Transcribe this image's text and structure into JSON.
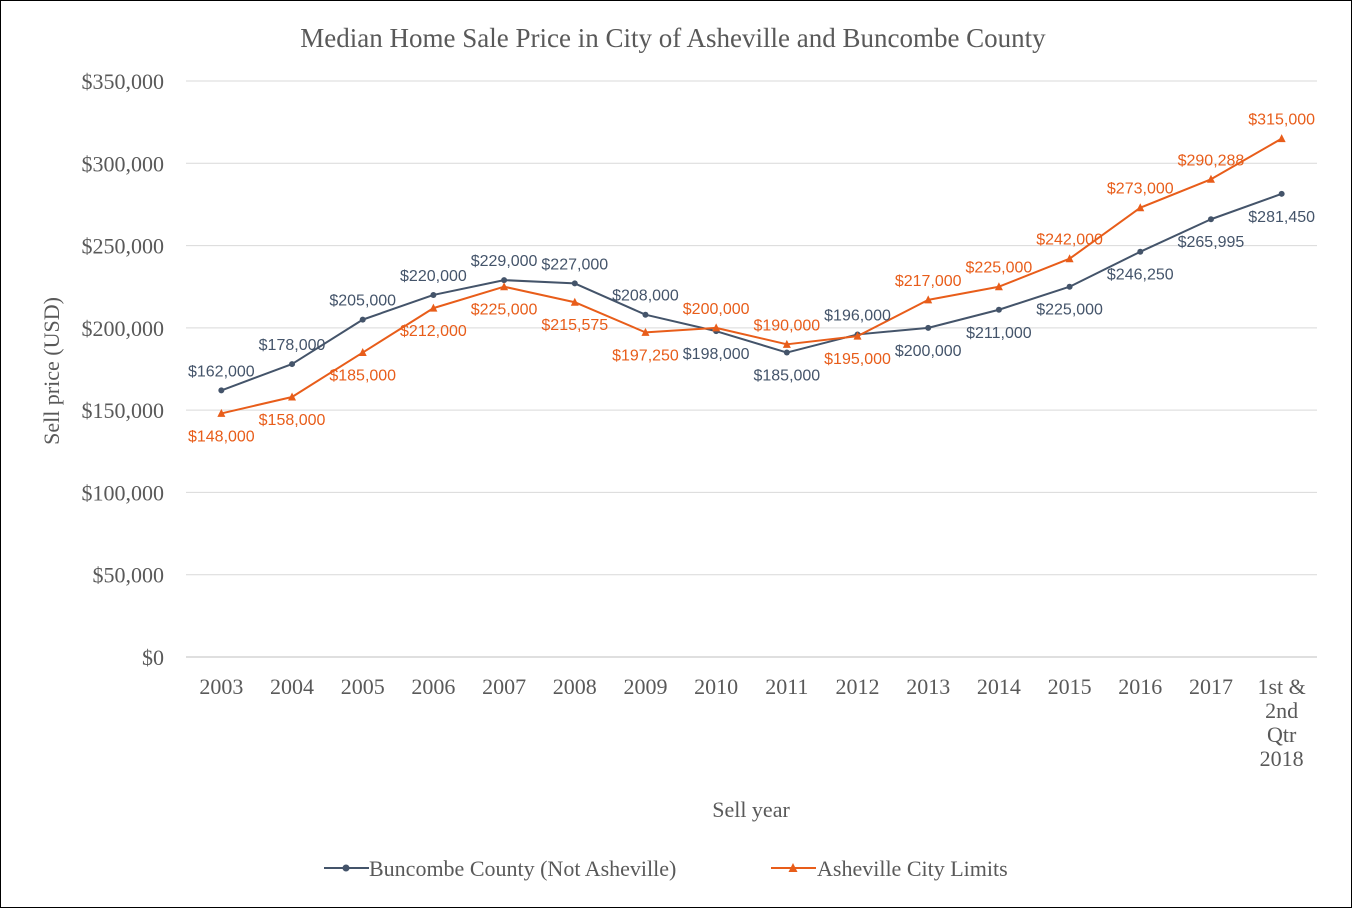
{
  "chart_data": {
    "type": "line",
    "title": "Median Home Sale Price in City of Asheville  and Buncombe County",
    "xlabel": "Sell year",
    "ylabel": "Sell price (USD)",
    "categories": [
      [
        "2003"
      ],
      [
        "2004"
      ],
      [
        "2005"
      ],
      [
        "2006"
      ],
      [
        "2007"
      ],
      [
        "2008"
      ],
      [
        "2009"
      ],
      [
        "2010"
      ],
      [
        "2011"
      ],
      [
        "2012"
      ],
      [
        "2013"
      ],
      [
        "2014"
      ],
      [
        "2015"
      ],
      [
        "2016"
      ],
      [
        "2017"
      ],
      [
        "1st &",
        "2nd",
        "Qtr",
        "2018"
      ]
    ],
    "ylim": [
      0,
      350000
    ],
    "yticks": [
      0,
      50000,
      100000,
      150000,
      200000,
      250000,
      300000,
      350000
    ],
    "ytick_labels": [
      "$0",
      "$50,000",
      "$100,000",
      "$150,000",
      "$200,000",
      "$250,000",
      "$300,000",
      "$350,000"
    ],
    "grid": true,
    "legend_position": "bottom",
    "series": [
      {
        "name": "Buncombe County (Not Asheville)",
        "color": "#44546A",
        "marker": "circle",
        "values": [
          162000,
          178000,
          205000,
          220000,
          229000,
          227000,
          208000,
          198000,
          185000,
          196000,
          200000,
          211000,
          225000,
          246250,
          265995,
          281450
        ],
        "labels": [
          "$162,000",
          "$178,000",
          "$205,000",
          "$220,000",
          "$229,000",
          "$227,000",
          "$208,000",
          "$198,000",
          "$185,000",
          "$196,000",
          "$200,000",
          "$211,000",
          "$225,000",
          "$246,250",
          "$265,995",
          "$281,450"
        ],
        "label_pos": [
          "above",
          "above",
          "above",
          "above",
          "above",
          "above",
          "above",
          "below",
          "below",
          "above",
          "below",
          "below",
          "below",
          "below",
          "below",
          "below"
        ]
      },
      {
        "name": "Asheville City Limits",
        "color": "#E85D1A",
        "marker": "triangle",
        "values": [
          148000,
          158000,
          185000,
          212000,
          225000,
          215575,
          197250,
          200000,
          190000,
          195000,
          217000,
          225000,
          242000,
          273000,
          290288,
          315000
        ],
        "labels": [
          "$148,000",
          "$158,000",
          "$185,000",
          "$212,000",
          "$225,000",
          "$215,575",
          "$197,250",
          "$200,000",
          "$190,000",
          "$195,000",
          "$217,000",
          "$225,000",
          "$242,000",
          "$273,000",
          "$290,288",
          "$315,000"
        ],
        "label_pos": [
          "below",
          "below",
          "below",
          "below",
          "below",
          "below",
          "below",
          "above",
          "above",
          "below",
          "above",
          "above",
          "above",
          "above",
          "above",
          "above"
        ]
      }
    ]
  }
}
